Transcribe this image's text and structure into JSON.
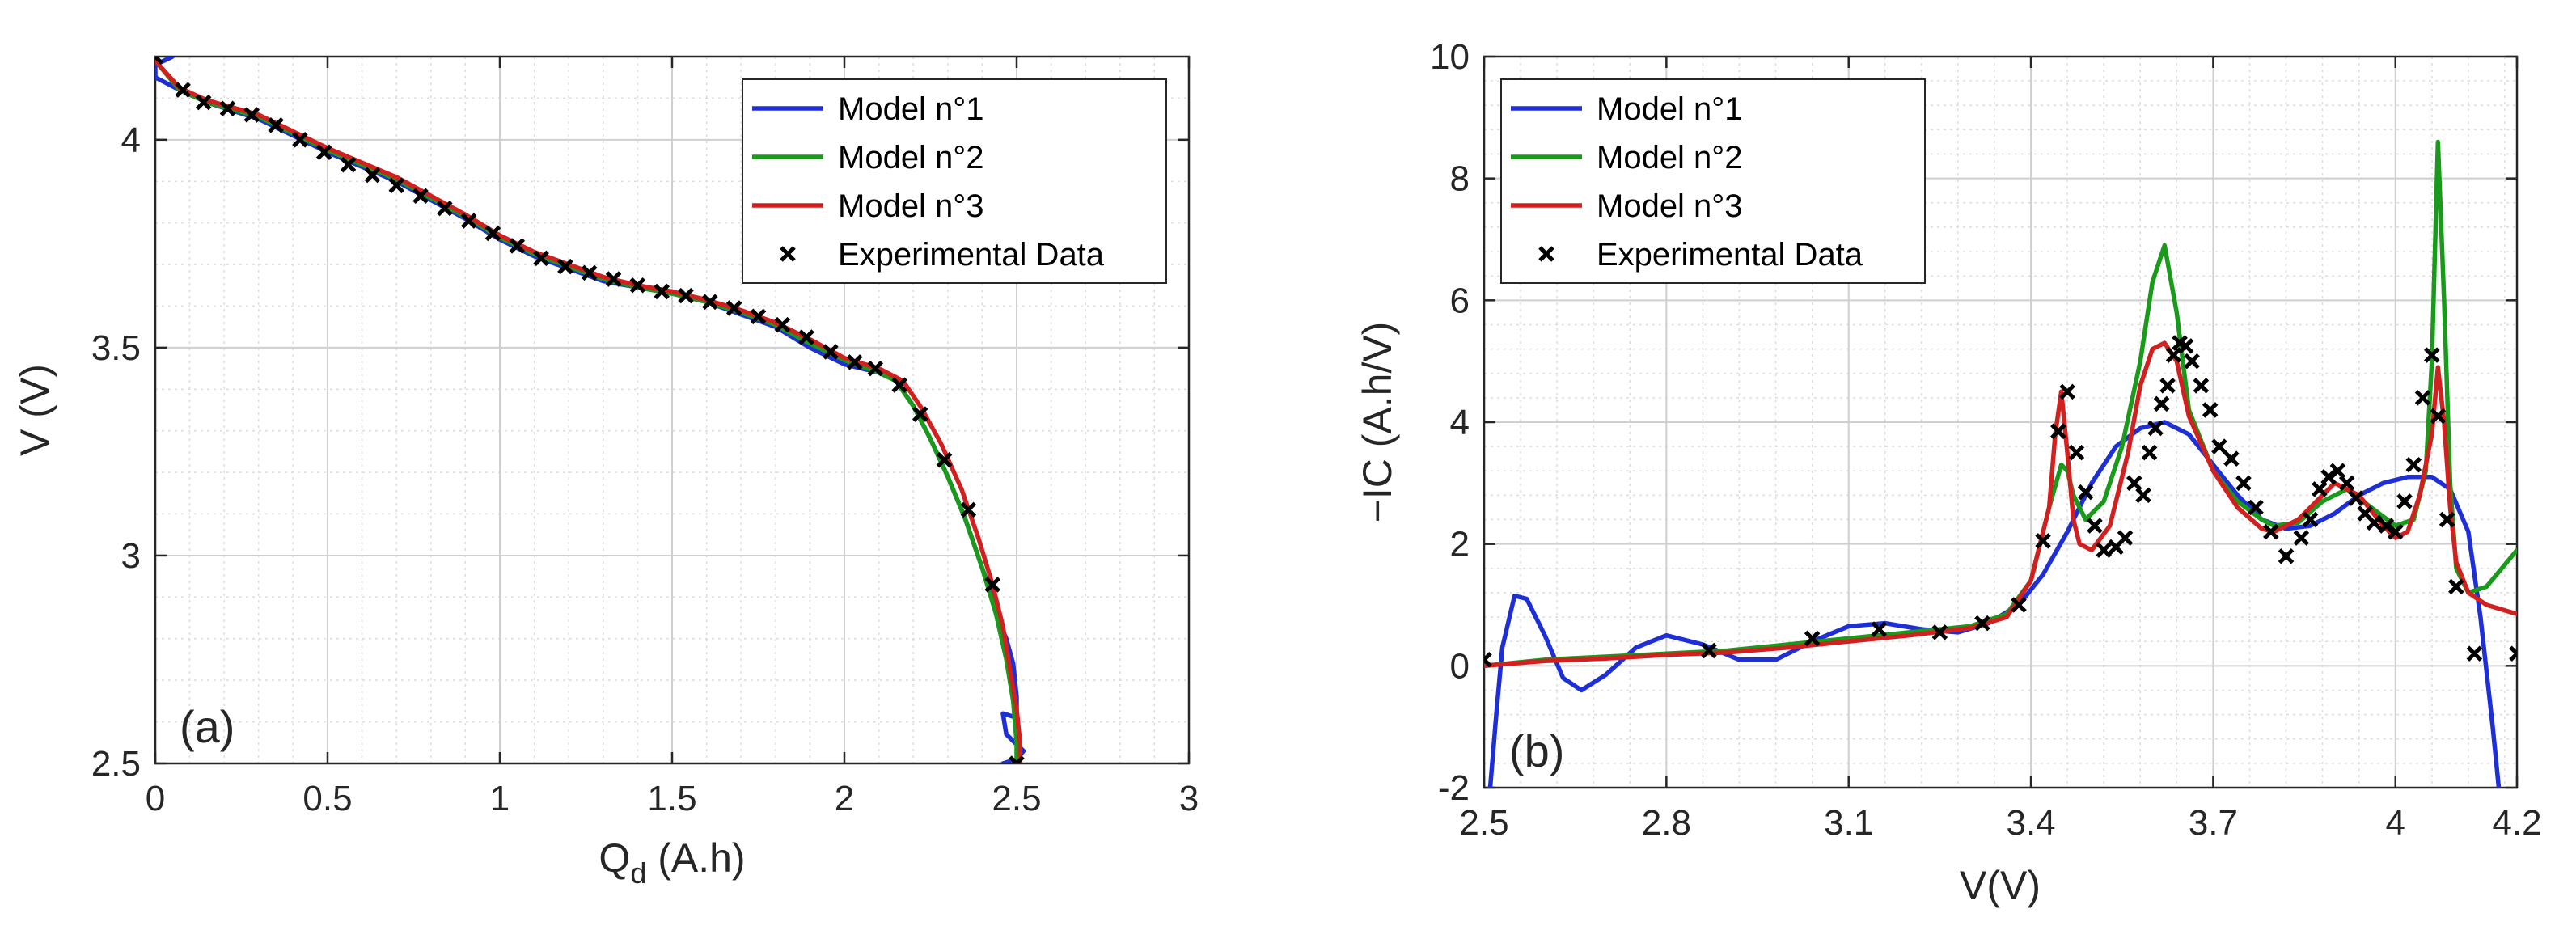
{
  "chart_data": [
    {
      "type": "line",
      "panel_label": "(a)",
      "xlabel": "Q",
      "xlabel_sub": "d",
      "xlabel_unit": " (A.h)",
      "ylabel": "V (V)",
      "xlim": [
        0,
        3
      ],
      "ylim": [
        2.5,
        4.2
      ],
      "xticks": [
        0,
        0.5,
        1,
        1.5,
        2,
        2.5,
        3
      ],
      "xtick_labels": [
        "0",
        "0.5",
        "1",
        "1.5",
        "2",
        "2.5",
        "3"
      ],
      "yticks": [
        2.5,
        3,
        3.5,
        4
      ],
      "ytick_labels": [
        "2.5",
        "3",
        "3.5",
        "4"
      ],
      "grid": true,
      "legend_position": "top-right",
      "legend": [
        "Model n°1",
        "Model n°2",
        "Model n°3",
        "Experimental Data"
      ],
      "series": [
        {
          "name": "Model n°1",
          "color": "#1f2fd6",
          "x": [
            0.05,
            0.0,
            0.0,
            0.07,
            0.15,
            0.3,
            0.5,
            0.7,
            0.9,
            1.0,
            1.1,
            1.2,
            1.3,
            1.4,
            1.5,
            1.6,
            1.7,
            1.8,
            1.9,
            2.0,
            2.1,
            2.15,
            2.2,
            2.25,
            2.3,
            2.35,
            2.4,
            2.43,
            2.45,
            2.47,
            2.49,
            2.5,
            2.5,
            2.46,
            2.47,
            2.52,
            2.5,
            2.46
          ],
          "y": [
            4.2,
            4.18,
            4.15,
            4.12,
            4.09,
            4.05,
            3.97,
            3.9,
            3.81,
            3.76,
            3.72,
            3.69,
            3.66,
            3.645,
            3.63,
            3.61,
            3.58,
            3.55,
            3.5,
            3.46,
            3.44,
            3.42,
            3.36,
            3.28,
            3.19,
            3.09,
            2.97,
            2.9,
            2.84,
            2.8,
            2.74,
            2.66,
            2.61,
            2.62,
            2.57,
            2.53,
            2.51,
            2.5
          ]
        },
        {
          "name": "Model n°2",
          "color": "#1a9a1a",
          "x": [
            0.0,
            0.07,
            0.15,
            0.3,
            0.5,
            0.7,
            0.9,
            1.0,
            1.1,
            1.2,
            1.3,
            1.4,
            1.5,
            1.6,
            1.7,
            1.8,
            1.9,
            2.0,
            2.1,
            2.15,
            2.2,
            2.25,
            2.3,
            2.35,
            2.4,
            2.44,
            2.47,
            2.49,
            2.5,
            2.5
          ],
          "y": [
            4.19,
            4.12,
            4.09,
            4.055,
            3.975,
            3.905,
            3.815,
            3.765,
            3.725,
            3.695,
            3.665,
            3.645,
            3.63,
            3.61,
            3.585,
            3.555,
            3.51,
            3.47,
            3.44,
            3.42,
            3.36,
            3.28,
            3.19,
            3.09,
            2.97,
            2.86,
            2.75,
            2.65,
            2.55,
            2.5
          ]
        },
        {
          "name": "Model n°3",
          "color": "#d12020",
          "x": [
            0.0,
            0.07,
            0.15,
            0.3,
            0.5,
            0.7,
            0.9,
            1.0,
            1.1,
            1.2,
            1.3,
            1.4,
            1.5,
            1.6,
            1.7,
            1.8,
            1.9,
            2.0,
            2.1,
            2.17,
            2.22,
            2.28,
            2.34,
            2.39,
            2.43,
            2.46,
            2.48,
            2.5,
            2.51,
            2.51
          ],
          "y": [
            4.19,
            4.125,
            4.095,
            4.06,
            3.98,
            3.91,
            3.82,
            3.77,
            3.73,
            3.7,
            3.67,
            3.65,
            3.635,
            3.615,
            3.59,
            3.56,
            3.52,
            3.475,
            3.45,
            3.42,
            3.36,
            3.27,
            3.16,
            3.04,
            2.93,
            2.83,
            2.73,
            2.63,
            2.55,
            2.5
          ]
        },
        {
          "name": "Experimental Data",
          "color": "#000000",
          "marker": "x",
          "x": [
            0.0,
            0.08,
            0.14,
            0.21,
            0.28,
            0.35,
            0.42,
            0.49,
            0.56,
            0.63,
            0.7,
            0.77,
            0.84,
            0.91,
            0.98,
            1.05,
            1.12,
            1.19,
            1.26,
            1.33,
            1.4,
            1.47,
            1.54,
            1.61,
            1.68,
            1.75,
            1.82,
            1.89,
            1.96,
            2.03,
            2.09,
            2.16,
            2.22,
            2.29,
            2.36,
            2.43,
            2.5
          ],
          "y": [
            4.2,
            4.12,
            4.09,
            4.075,
            4.06,
            4.035,
            4.0,
            3.97,
            3.94,
            3.915,
            3.89,
            3.865,
            3.835,
            3.805,
            3.775,
            3.745,
            3.715,
            3.695,
            3.68,
            3.665,
            3.65,
            3.635,
            3.625,
            3.61,
            3.595,
            3.575,
            3.555,
            3.525,
            3.49,
            3.465,
            3.45,
            3.41,
            3.34,
            3.23,
            3.11,
            2.93,
            2.5
          ]
        }
      ]
    },
    {
      "type": "line",
      "panel_label": "(b)",
      "xlabel": "V(V)",
      "ylabel": "−IC (A.h/V)",
      "xlim": [
        2.5,
        4.2
      ],
      "ylim": [
        -2,
        10
      ],
      "xticks": [
        2.5,
        2.8,
        3.1,
        3.4,
        3.7,
        4.0,
        4.2
      ],
      "xtick_labels": [
        "2.5",
        "2.8",
        "3.1",
        "3.4",
        "3.7",
        "4",
        "4.2"
      ],
      "yticks": [
        -2,
        0,
        2,
        4,
        6,
        8,
        10
      ],
      "ytick_labels": [
        "-2",
        "0",
        "2",
        "4",
        "6",
        "8",
        "10"
      ],
      "grid": true,
      "legend_position": "top-left",
      "legend": [
        "Model n°1",
        "Model n°2",
        "Model n°3",
        "Experimental Data"
      ],
      "series": [
        {
          "name": "Model n°1",
          "color": "#1f2fd6",
          "x": [
            2.51,
            2.52,
            2.53,
            2.55,
            2.57,
            2.6,
            2.63,
            2.66,
            2.7,
            2.75,
            2.8,
            2.86,
            2.92,
            2.98,
            3.04,
            3.1,
            3.16,
            3.22,
            3.28,
            3.33,
            3.38,
            3.42,
            3.46,
            3.5,
            3.54,
            3.58,
            3.62,
            3.66,
            3.7,
            3.74,
            3.78,
            3.82,
            3.86,
            3.9,
            3.94,
            3.98,
            4.02,
            4.06,
            4.09,
            4.12,
            4.14,
            4.16,
            4.17
          ],
          "y": [
            -2.0,
            -0.8,
            0.3,
            1.15,
            1.1,
            0.5,
            -0.2,
            -0.4,
            -0.15,
            0.3,
            0.5,
            0.35,
            0.1,
            0.1,
            0.4,
            0.65,
            0.7,
            0.6,
            0.55,
            0.7,
            1.0,
            1.5,
            2.2,
            3.0,
            3.6,
            3.9,
            4.0,
            3.8,
            3.3,
            2.8,
            2.4,
            2.25,
            2.3,
            2.5,
            2.8,
            3.0,
            3.1,
            3.1,
            2.9,
            2.2,
            0.8,
            -1.0,
            -2.0
          ]
        },
        {
          "name": "Model n°2",
          "color": "#1a9a1a",
          "x": [
            2.5,
            2.6,
            2.7,
            2.8,
            2.9,
            3.0,
            3.1,
            3.2,
            3.3,
            3.36,
            3.4,
            3.43,
            3.45,
            3.46,
            3.47,
            3.49,
            3.52,
            3.55,
            3.58,
            3.6,
            3.62,
            3.64,
            3.66,
            3.7,
            3.74,
            3.78,
            3.8,
            3.84,
            3.88,
            3.92,
            3.96,
            4.0,
            4.03,
            4.05,
            4.06,
            4.07,
            4.08,
            4.09,
            4.1,
            4.12,
            4.15,
            4.2
          ],
          "y": [
            0.0,
            0.1,
            0.15,
            0.2,
            0.25,
            0.35,
            0.45,
            0.55,
            0.65,
            0.85,
            1.4,
            2.6,
            3.3,
            3.2,
            2.8,
            2.4,
            2.7,
            3.6,
            5.0,
            6.3,
            6.9,
            5.8,
            4.2,
            3.2,
            2.7,
            2.4,
            2.3,
            2.35,
            2.7,
            2.9,
            2.6,
            2.3,
            2.4,
            3.2,
            5.0,
            8.6,
            6.0,
            3.0,
            1.6,
            1.2,
            1.3,
            1.9
          ]
        },
        {
          "name": "Model n°3",
          "color": "#d12020",
          "x": [
            2.5,
            2.6,
            2.7,
            2.8,
            2.9,
            3.0,
            3.1,
            3.2,
            3.3,
            3.36,
            3.4,
            3.43,
            3.44,
            3.45,
            3.46,
            3.47,
            3.48,
            3.5,
            3.53,
            3.56,
            3.58,
            3.6,
            3.62,
            3.64,
            3.66,
            3.7,
            3.74,
            3.78,
            3.8,
            3.84,
            3.88,
            3.9,
            3.94,
            3.98,
            4.0,
            4.02,
            4.04,
            4.06,
            4.07,
            4.08,
            4.09,
            4.1,
            4.12,
            4.15,
            4.2
          ],
          "y": [
            0.0,
            0.08,
            0.12,
            0.18,
            0.22,
            0.3,
            0.4,
            0.5,
            0.62,
            0.8,
            1.4,
            2.6,
            3.8,
            4.5,
            3.5,
            2.4,
            2.0,
            1.9,
            2.3,
            3.5,
            4.6,
            5.2,
            5.3,
            5.0,
            4.1,
            3.2,
            2.6,
            2.25,
            2.2,
            2.4,
            2.8,
            3.0,
            2.8,
            2.3,
            2.1,
            2.2,
            2.8,
            3.8,
            4.9,
            4.0,
            2.6,
            1.7,
            1.2,
            1.0,
            0.85
          ]
        },
        {
          "name": "Experimental Data",
          "color": "#000000",
          "marker": "x",
          "x": [
            2.5,
            2.87,
            3.04,
            3.15,
            3.25,
            3.32,
            3.38,
            3.42,
            3.445,
            3.46,
            3.475,
            3.49,
            3.505,
            3.52,
            3.54,
            3.555,
            3.57,
            3.585,
            3.595,
            3.605,
            3.615,
            3.625,
            3.635,
            3.645,
            3.655,
            3.665,
            3.68,
            3.695,
            3.71,
            3.73,
            3.75,
            3.77,
            3.795,
            3.82,
            3.845,
            3.86,
            3.875,
            3.89,
            3.905,
            3.92,
            3.935,
            3.95,
            3.965,
            3.985,
            4.0,
            4.015,
            4.03,
            4.045,
            4.06,
            4.07,
            4.085,
            4.1,
            4.13,
            4.2
          ],
          "y": [
            0.1,
            0.25,
            0.45,
            0.6,
            0.55,
            0.7,
            1.0,
            2.05,
            3.85,
            4.5,
            3.5,
            2.85,
            2.3,
            1.9,
            1.95,
            2.1,
            3.0,
            2.8,
            3.5,
            3.9,
            4.3,
            4.6,
            5.1,
            5.3,
            5.25,
            5.0,
            4.6,
            4.2,
            3.6,
            3.4,
            3.0,
            2.6,
            2.2,
            1.8,
            2.1,
            2.4,
            2.9,
            3.1,
            3.2,
            3.0,
            2.75,
            2.5,
            2.35,
            2.3,
            2.2,
            2.7,
            3.3,
            4.4,
            5.1,
            4.1,
            2.4,
            1.3,
            0.2,
            0.2
          ]
        }
      ]
    }
  ]
}
